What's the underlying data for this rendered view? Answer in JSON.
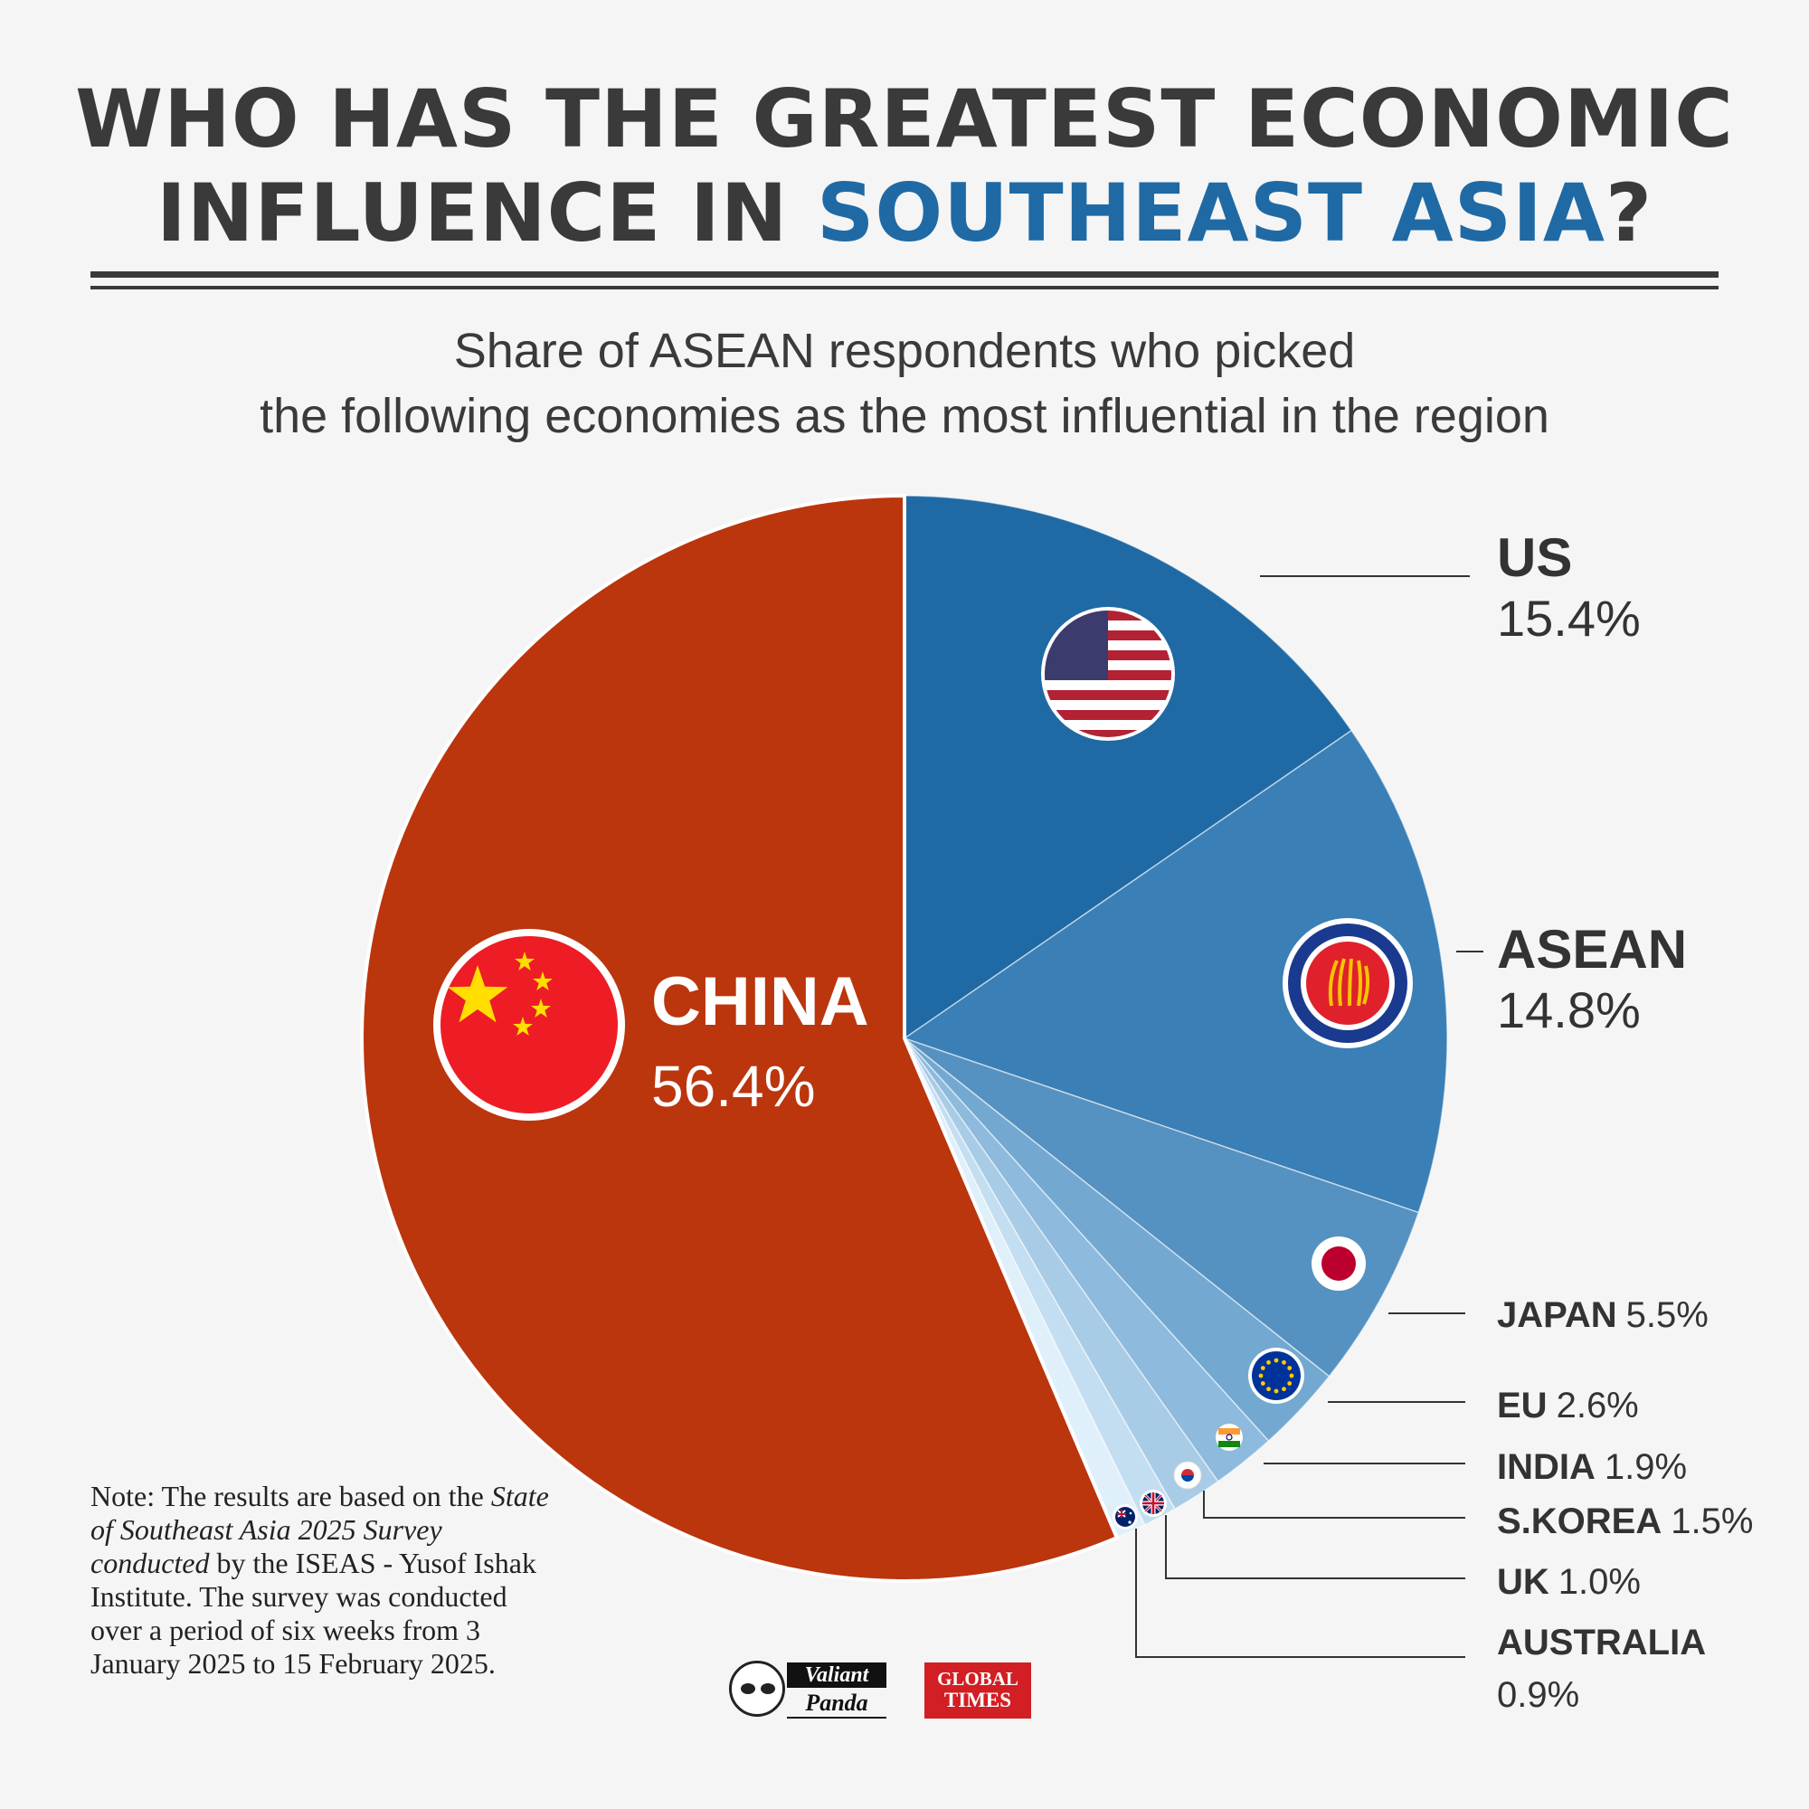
{
  "title": {
    "line1": "WHO HAS THE GREATEST ECONOMIC",
    "line2_pre": "INFLUENCE IN ",
    "line2_highlight": "SOUTHEAST ASIA",
    "line2_post": "?"
  },
  "subtitle": {
    "line1": "Share of ASEAN respondents who picked",
    "line2": "the following economies as the most influential in the region"
  },
  "colors": {
    "highlight": "#1f6aa5",
    "china": "#bb350d",
    "text": "#3a3a3a"
  },
  "chart_data": {
    "type": "pie",
    "start": "12 o'clock, clockwise",
    "unit": "%",
    "slices": [
      {
        "name": "US",
        "value": 15.4,
        "label": "15.4%",
        "color": "#1f6aa5",
        "icon": "us-flag-icon"
      },
      {
        "name": "ASEAN",
        "value": 14.8,
        "label": "14.8%",
        "color": "#3a7fb6",
        "icon": "asean-emblem-icon"
      },
      {
        "name": "JAPAN",
        "value": 5.5,
        "label": "5.5%",
        "color": "#5591c1",
        "icon": "japan-flag-icon"
      },
      {
        "name": "EU",
        "value": 2.6,
        "label": "2.6%",
        "color": "#73a9d0",
        "icon": "eu-flag-icon"
      },
      {
        "name": "INDIA",
        "value": 1.9,
        "label": "1.9%",
        "color": "#8dbadd",
        "icon": "india-flag-icon"
      },
      {
        "name": "S.KOREA",
        "value": 1.5,
        "label": "1.5%",
        "color": "#a8cbe6",
        "icon": "south-korea-flag-icon"
      },
      {
        "name": "UK",
        "value": 1.0,
        "label": "1.0%",
        "color": "#c4def1",
        "icon": "uk-flag-icon"
      },
      {
        "name": "AUSTRALIA",
        "value": 0.9,
        "label": "0.9%",
        "color": "#dff0fb",
        "icon": "australia-flag-icon"
      },
      {
        "name": "CHINA",
        "value": 56.4,
        "label": "56.4%",
        "color": "#bb350d",
        "icon": "china-flag-icon"
      }
    ]
  },
  "note": {
    "p1": "Note: The results are based on the ",
    "italic": "State of Southeast Asia 2025 Survey conducted",
    "p2": " by the ISEAS - Yusof Ishak Institute. The survey was conducted over a period of six weeks from 3 January 2025 to 15 February 2025."
  },
  "logos": {
    "vp_line1": "Valiant",
    "vp_line2": "Panda",
    "gt_line1": "GLOBAL",
    "gt_line2": "TIMES"
  }
}
